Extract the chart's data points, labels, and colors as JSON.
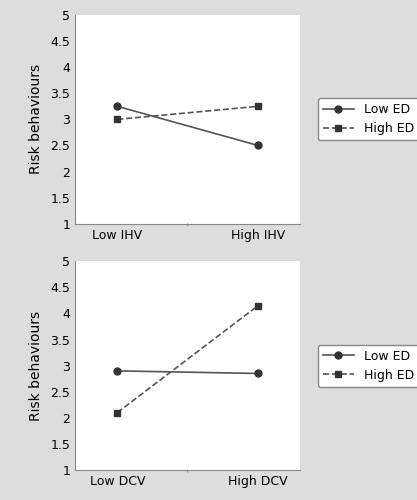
{
  "plot1": {
    "title": "",
    "xlabel_ticks": [
      "Low IHV",
      "High IHV"
    ],
    "ylabel": "Risk behaviours",
    "ylim": [
      1,
      5
    ],
    "yticks": [
      1,
      1.5,
      2,
      2.5,
      3,
      3.5,
      4,
      4.5,
      5
    ],
    "low_ed": [
      3.25,
      2.5
    ],
    "high_ed": [
      3.0,
      3.25
    ],
    "legend_labels": [
      "Low ED",
      "High ED"
    ]
  },
  "plot2": {
    "title": "",
    "xlabel_ticks": [
      "Low DCV",
      "High DCV"
    ],
    "ylabel": "Risk behaviours",
    "ylim": [
      1,
      5
    ],
    "yticks": [
      1,
      1.5,
      2,
      2.5,
      3,
      3.5,
      4,
      4.5,
      5
    ],
    "low_ed": [
      2.9,
      2.85
    ],
    "high_ed": [
      2.1,
      4.15
    ],
    "legend_labels": [
      "Low ED",
      "High ED"
    ]
  },
  "line_color": "#555555",
  "marker_color": "#333333",
  "background_color": "#ffffff",
  "outer_bg": "#dddddd",
  "fontsize_ticks": 9,
  "fontsize_ylabel": 10,
  "fontsize_legend": 9
}
